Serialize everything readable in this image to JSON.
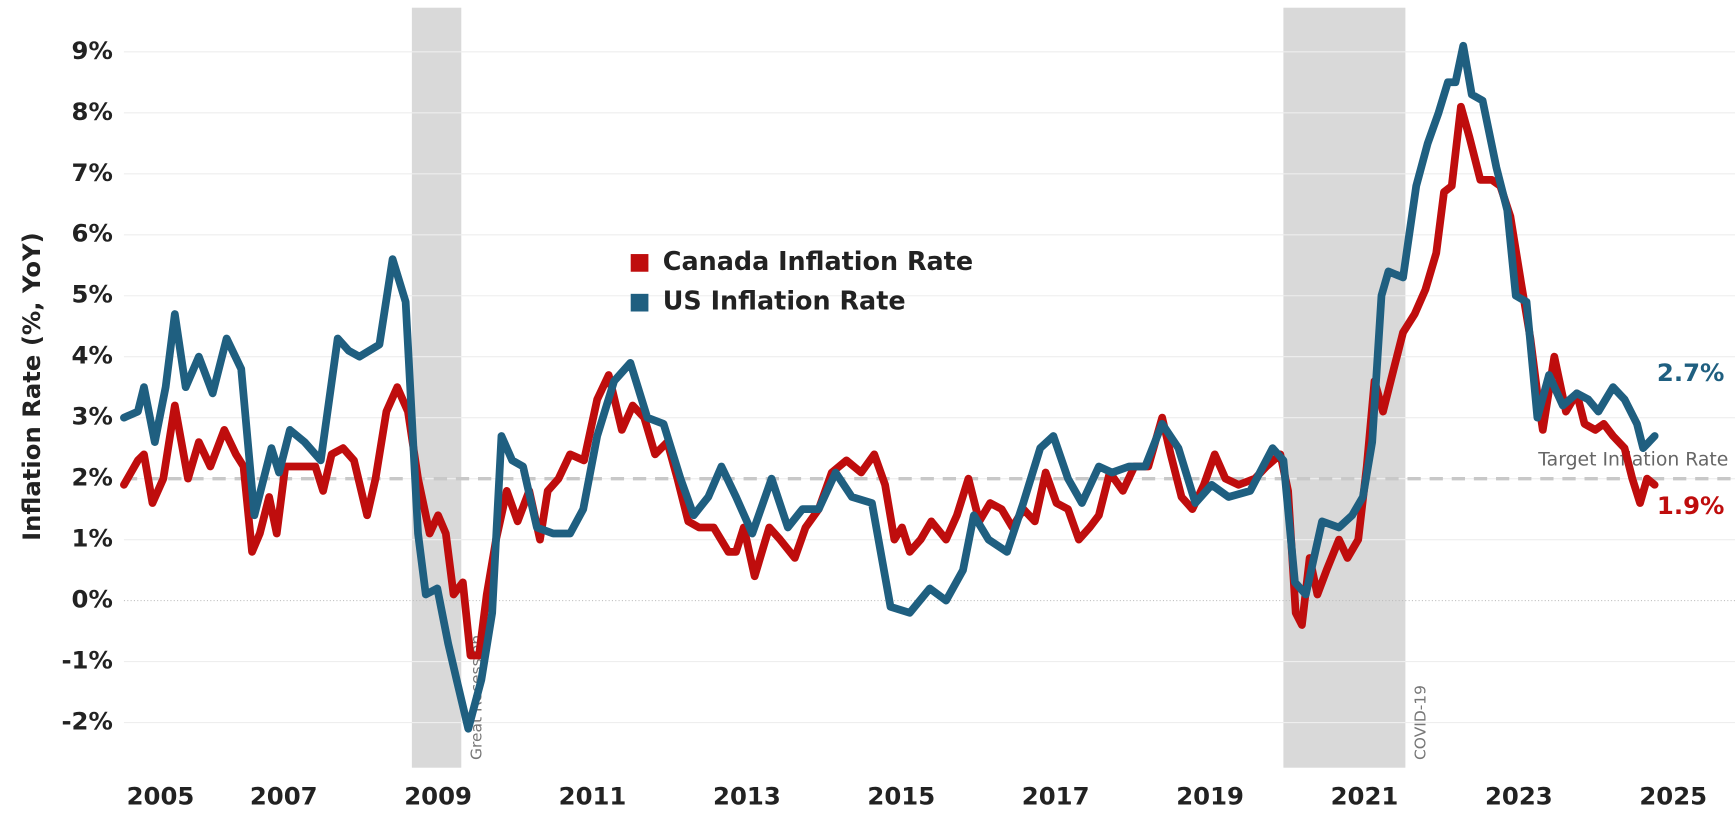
{
  "chart_data": {
    "type": "line",
    "y_label": "Inflation Rate (%, YoY)",
    "xlim": [
      2004.93,
      2025.8
    ],
    "ylim": [
      -2.74,
      9.85
    ],
    "xticks": [
      2005,
      2007,
      2009,
      2011,
      2013,
      2015,
      2017,
      2019,
      2021,
      2023,
      2025
    ],
    "yticks": [
      {
        "value": -2,
        "label": "-2%"
      },
      {
        "value": -1,
        "label": "-1%"
      },
      {
        "value": 0,
        "label": "0%"
      },
      {
        "value": 1,
        "label": "1%"
      },
      {
        "value": 2,
        "label": "2%"
      },
      {
        "value": 3,
        "label": "3%"
      },
      {
        "value": 4,
        "label": "4%"
      },
      {
        "value": 5,
        "label": "5%"
      },
      {
        "value": 6,
        "label": "6%"
      },
      {
        "value": 7,
        "label": "7%"
      },
      {
        "value": 8,
        "label": "8%"
      },
      {
        "value": 9,
        "label": "9%"
      }
    ],
    "grid": true,
    "legend": "upper-center",
    "target": {
      "value": 2,
      "label": "Target Inflation Rate"
    },
    "shaded_periods": [
      {
        "label": "Great Recession",
        "start": 2008.66,
        "end": 2009.3
      },
      {
        "label": "COVID-19",
        "start": 2019.95,
        "end": 2021.53
      }
    ],
    "series": [
      {
        "name": "Canada Inflation Rate",
        "color": "#bf0d0d",
        "end_label": "1.9%",
        "x": [
          2004.93,
          2005.11,
          2005.19,
          2005.3,
          2005.44,
          2005.59,
          2005.76,
          2005.9,
          2006.05,
          2006.23,
          2006.38,
          2006.48,
          2006.59,
          2006.69,
          2006.81,
          2006.91,
          2007.02,
          2007.19,
          2007.41,
          2007.51,
          2007.62,
          2007.77,
          2007.91,
          2008.08,
          2008.19,
          2008.33,
          2008.47,
          2008.61,
          2008.74,
          2008.89,
          2009.0,
          2009.1,
          2009.2,
          2009.32,
          2009.42,
          2009.53,
          2009.63,
          2009.75,
          2009.89,
          2010.03,
          2010.18,
          2010.32,
          2010.42,
          2010.56,
          2010.71,
          2010.89,
          2011.06,
          2011.21,
          2011.38,
          2011.52,
          2011.67,
          2011.81,
          2011.97,
          2012.1,
          2012.24,
          2012.38,
          2012.57,
          2012.76,
          2012.86,
          2012.96,
          2013.1,
          2013.29,
          2013.43,
          2013.62,
          2013.76,
          2013.93,
          2014.1,
          2014.29,
          2014.48,
          2014.65,
          2014.79,
          2014.91,
          2015.01,
          2015.11,
          2015.25,
          2015.39,
          2015.58,
          2015.72,
          2015.87,
          2016.01,
          2016.15,
          2016.3,
          2016.44,
          2016.58,
          2016.73,
          2016.87,
          2017.01,
          2017.16,
          2017.3,
          2017.44,
          2017.56,
          2017.7,
          2017.87,
          2018.02,
          2018.2,
          2018.38,
          2018.49,
          2018.63,
          2018.77,
          2018.92,
          2019.06,
          2019.2,
          2019.37,
          2019.58,
          2019.73,
          2019.91,
          2020.01,
          2020.11,
          2020.19,
          2020.29,
          2020.39,
          2020.51,
          2020.67,
          2020.78,
          2020.92,
          2021.03,
          2021.13,
          2021.24,
          2021.36,
          2021.5,
          2021.65,
          2021.79,
          2021.93,
          2022.03,
          2022.13,
          2022.25,
          2022.36,
          2022.5,
          2022.65,
          2022.76,
          2022.89,
          2023.03,
          2023.15,
          2023.24,
          2023.31,
          2023.46,
          2023.61,
          2023.75,
          2023.85,
          2023.99,
          2024.1,
          2024.22,
          2024.37,
          2024.47,
          2024.57,
          2024.66,
          2024.76
        ],
        "values": [
          1.9,
          2.3,
          2.4,
          1.6,
          2.0,
          3.2,
          2.0,
          2.6,
          2.2,
          2.8,
          2.4,
          2.2,
          0.8,
          1.1,
          1.7,
          1.1,
          2.2,
          2.2,
          2.2,
          1.8,
          2.4,
          2.5,
          2.3,
          1.4,
          2.0,
          3.1,
          3.5,
          3.1,
          2.0,
          1.1,
          1.4,
          1.1,
          0.1,
          0.3,
          -0.9,
          -0.9,
          0.1,
          1.0,
          1.8,
          1.3,
          1.8,
          1.0,
          1.8,
          2.0,
          2.4,
          2.3,
          3.3,
          3.7,
          2.8,
          3.2,
          3.0,
          2.4,
          2.6,
          2.0,
          1.3,
          1.2,
          1.2,
          0.8,
          0.8,
          1.2,
          0.4,
          1.2,
          1.0,
          0.7,
          1.2,
          1.5,
          2.1,
          2.3,
          2.1,
          2.4,
          1.9,
          1.0,
          1.2,
          0.8,
          1.0,
          1.3,
          1.0,
          1.4,
          2.0,
          1.3,
          1.6,
          1.5,
          1.2,
          1.5,
          1.3,
          2.1,
          1.6,
          1.5,
          1.0,
          1.2,
          1.4,
          2.1,
          1.8,
          2.2,
          2.2,
          3.0,
          2.4,
          1.7,
          1.5,
          1.9,
          2.4,
          2.0,
          1.9,
          2.0,
          2.2,
          2.4,
          1.8,
          -0.2,
          -0.4,
          0.7,
          0.1,
          0.5,
          1.0,
          0.7,
          1.0,
          2.2,
          3.6,
          3.1,
          3.7,
          4.4,
          4.7,
          5.1,
          5.7,
          6.7,
          6.8,
          8.1,
          7.6,
          6.9,
          6.9,
          6.8,
          6.3,
          5.2,
          4.3,
          3.4,
          2.8,
          4.0,
          3.1,
          3.4,
          2.9,
          2.8,
          2.9,
          2.7,
          2.5,
          2.0,
          1.6,
          2.0,
          1.9
        ]
      },
      {
        "name": "US Inflation Rate",
        "color": "#1f5f80",
        "end_label": "2.7%",
        "x": [
          2004.93,
          2005.11,
          2005.19,
          2005.33,
          2005.47,
          2005.59,
          2005.73,
          2005.9,
          2006.08,
          2006.26,
          2006.45,
          2006.62,
          2006.84,
          2006.94,
          2007.08,
          2007.27,
          2007.48,
          2007.7,
          2007.84,
          2007.98,
          2008.24,
          2008.41,
          2008.58,
          2008.74,
          2008.84,
          2008.99,
          2009.13,
          2009.24,
          2009.39,
          2009.56,
          2009.7,
          2009.82,
          2009.96,
          2010.1,
          2010.28,
          2010.49,
          2010.71,
          2010.88,
          2011.06,
          2011.28,
          2011.49,
          2011.71,
          2011.92,
          2012.14,
          2012.31,
          2012.5,
          2012.67,
          2012.86,
          2013.07,
          2013.32,
          2013.53,
          2013.72,
          2013.93,
          2014.15,
          2014.36,
          2014.62,
          2014.86,
          2015.11,
          2015.37,
          2015.58,
          2015.8,
          2015.94,
          2016.13,
          2016.37,
          2016.58,
          2016.8,
          2016.97,
          2017.16,
          2017.34,
          2017.56,
          2017.73,
          2017.95,
          2018.16,
          2018.38,
          2018.59,
          2018.81,
          2019.02,
          2019.24,
          2019.52,
          2019.81,
          2019.95,
          2020.1,
          2020.24,
          2020.45,
          2020.67,
          2020.84,
          2020.98,
          2021.1,
          2021.22,
          2021.31,
          2021.5,
          2021.67,
          2021.82,
          2021.96,
          2022.08,
          2022.18,
          2022.28,
          2022.39,
          2022.53,
          2022.71,
          2022.85,
          2022.96,
          2023.1,
          2023.24,
          2023.39,
          2023.57,
          2023.75,
          2023.9,
          2024.03,
          2024.22,
          2024.37,
          2024.53,
          2024.61,
          2024.76
        ],
        "values": [
          3.0,
          3.1,
          3.5,
          2.6,
          3.5,
          4.7,
          3.5,
          4.0,
          3.4,
          4.3,
          3.8,
          1.4,
          2.5,
          2.1,
          2.8,
          2.6,
          2.3,
          4.3,
          4.1,
          4.0,
          4.2,
          5.6,
          4.9,
          1.1,
          0.1,
          0.2,
          -0.7,
          -1.3,
          -2.1,
          -1.3,
          -0.2,
          2.7,
          2.3,
          2.2,
          1.2,
          1.1,
          1.1,
          1.5,
          2.7,
          3.6,
          3.9,
          3.0,
          2.9,
          2.0,
          1.4,
          1.7,
          2.2,
          1.7,
          1.1,
          2.0,
          1.2,
          1.5,
          1.5,
          2.1,
          1.7,
          1.6,
          -0.1,
          -0.2,
          0.2,
          0.0,
          0.5,
          1.4,
          1.0,
          0.8,
          1.6,
          2.5,
          2.7,
          2.0,
          1.6,
          2.2,
          2.1,
          2.2,
          2.2,
          2.9,
          2.5,
          1.6,
          1.9,
          1.7,
          1.8,
          2.5,
          2.3,
          0.3,
          0.1,
          1.3,
          1.2,
          1.4,
          1.7,
          2.6,
          5.0,
          5.4,
          5.3,
          6.8,
          7.5,
          8.0,
          8.5,
          8.5,
          9.1,
          8.3,
          8.2,
          7.1,
          6.4,
          5.0,
          4.9,
          3.0,
          3.7,
          3.2,
          3.4,
          3.3,
          3.1,
          3.5,
          3.3,
          2.9,
          2.5,
          2.7
        ]
      }
    ]
  }
}
